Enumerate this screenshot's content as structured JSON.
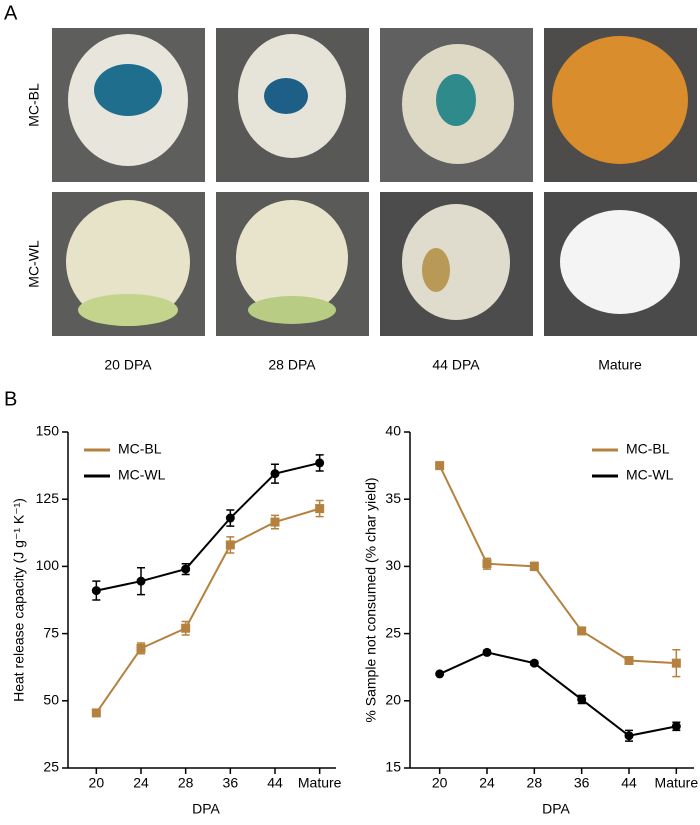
{
  "panel_labels": [
    "A",
    "B"
  ],
  "panel_a": {
    "row_labels": [
      "MC-BL",
      "MC-WL"
    ],
    "column_labels": [
      "20 DPA",
      "28 DPA",
      "44 DPA",
      "Mature"
    ]
  },
  "chart_data": [
    {
      "type": "line",
      "ylabel": "Heat release capacity (J g⁻¹ K⁻¹)",
      "xlabel": "DPA",
      "categories": [
        "20",
        "24",
        "28",
        "36",
        "44",
        "Mature"
      ],
      "ylim": [
        25,
        150
      ],
      "yticks": [
        25,
        50,
        75,
        100,
        125,
        150
      ],
      "legend": "upper-left",
      "series": [
        {
          "name": "MC-BL",
          "color": "#b5813e",
          "marker": "square",
          "values": [
            45.5,
            69.5,
            77,
            108,
            116.5,
            121.5
          ],
          "error": [
            1,
            2,
            2.5,
            3,
            2.5,
            3
          ]
        },
        {
          "name": "MC-WL",
          "color": "#000000",
          "marker": "circle",
          "values": [
            91,
            94.5,
            99,
            118,
            134.5,
            138.5
          ],
          "error": [
            3.5,
            5,
            2,
            3,
            3.5,
            3
          ]
        }
      ]
    },
    {
      "type": "line",
      "ylabel": "% Sample not consumed (% char yield)",
      "xlabel": "DPA",
      "categories": [
        "20",
        "24",
        "28",
        "36",
        "44",
        "Mature"
      ],
      "ylim": [
        15,
        40
      ],
      "yticks": [
        15,
        20,
        25,
        30,
        35,
        40
      ],
      "legend": "upper-right",
      "series": [
        {
          "name": "MC-BL",
          "color": "#b5813e",
          "marker": "square",
          "values": [
            37.5,
            30.2,
            30.0,
            25.2,
            23.0,
            22.8
          ],
          "error": [
            0.2,
            0.4,
            0.3,
            0.2,
            0.15,
            1.0
          ]
        },
        {
          "name": "MC-WL",
          "color": "#000000",
          "marker": "circle",
          "values": [
            22.0,
            23.6,
            22.8,
            20.1,
            17.4,
            18.1
          ],
          "error": [
            0.1,
            0.15,
            0.15,
            0.3,
            0.4,
            0.3
          ]
        }
      ]
    }
  ]
}
